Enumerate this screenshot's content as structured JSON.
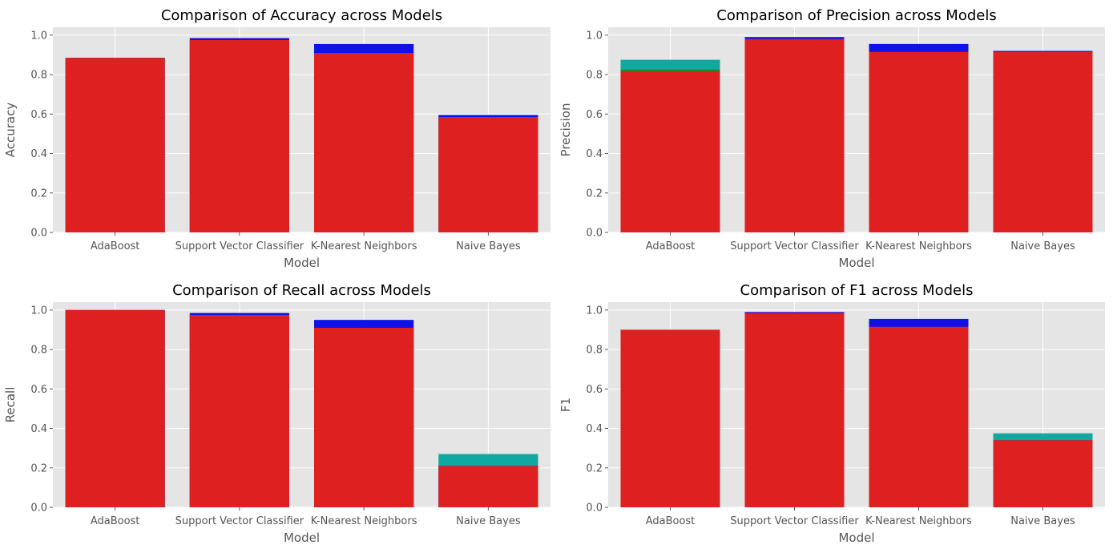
{
  "colors": {
    "plot_background": "#e5e5e5",
    "grid": "#ffffff",
    "text": "#555555",
    "title": "#000000"
  },
  "chart_data": [
    {
      "type": "bar",
      "title": "Comparison of Accuracy across Models",
      "xlabel": "Model",
      "ylabel": "Accuracy",
      "ylim": [
        0,
        1.04
      ],
      "yticks": [
        "0.0",
        "0.2",
        "0.4",
        "0.6",
        "0.8",
        "1.0"
      ],
      "grid": true,
      "categories": [
        "AdaBoost",
        "Support Vector Classifier",
        "K-Nearest Neighbors",
        "Naive Bayes"
      ],
      "series": [
        {
          "color": "#1010e8",
          "values": [
            0.885,
            0.985,
            0.955,
            0.595
          ]
        },
        {
          "color": "#10a8a0",
          "values": [
            0.885,
            0.975,
            0.91,
            0.585
          ]
        },
        {
          "color": "#de2020",
          "values": [
            0.885,
            0.975,
            0.91,
            0.585
          ]
        }
      ]
    },
    {
      "type": "bar",
      "title": "Comparison of Precision across Models",
      "xlabel": "Model",
      "ylabel": "Precision",
      "ylim": [
        0,
        1.04
      ],
      "yticks": [
        "0.0",
        "0.2",
        "0.4",
        "0.6",
        "0.8",
        "1.0"
      ],
      "grid": true,
      "categories": [
        "AdaBoost",
        "Support Vector Classifier",
        "K-Nearest Neighbors",
        "Naive Bayes"
      ],
      "series": [
        {
          "color": "#10a8a0",
          "values": [
            0.875,
            0.99,
            0.955,
            0.92
          ]
        },
        {
          "color": "#1010e8",
          "values": [
            0.82,
            0.99,
            0.955,
            0.92
          ]
        },
        {
          "color": "#1a8a1a",
          "values": [
            0.825,
            0.98,
            0.915,
            0.915
          ]
        },
        {
          "color": "#de2020",
          "values": [
            0.815,
            0.98,
            0.915,
            0.915
          ]
        }
      ]
    },
    {
      "type": "bar",
      "title": "Comparison of Recall across Models",
      "xlabel": "Model",
      "ylabel": "Recall",
      "ylim": [
        0,
        1.04
      ],
      "yticks": [
        "0.0",
        "0.2",
        "0.4",
        "0.6",
        "0.8",
        "1.0"
      ],
      "grid": true,
      "categories": [
        "AdaBoost",
        "Support Vector Classifier",
        "K-Nearest Neighbors",
        "Naive Bayes"
      ],
      "series": [
        {
          "color": "#10a8a0",
          "values": [
            1.0,
            0.975,
            0.91,
            0.27
          ]
        },
        {
          "color": "#1010e8",
          "values": [
            1.0,
            0.985,
            0.95,
            0.21
          ]
        },
        {
          "color": "#de2020",
          "values": [
            1.0,
            0.975,
            0.91,
            0.21
          ]
        }
      ]
    },
    {
      "type": "bar",
      "title": "Comparison of F1 across Models",
      "xlabel": "Model",
      "ylabel": "F1",
      "ylim": [
        0,
        1.04
      ],
      "yticks": [
        "0.0",
        "0.2",
        "0.4",
        "0.6",
        "0.8",
        "1.0"
      ],
      "grid": true,
      "categories": [
        "AdaBoost",
        "Support Vector Classifier",
        "K-Nearest Neighbors",
        "Naive Bayes"
      ],
      "series": [
        {
          "color": "#10a8a0",
          "values": [
            0.9,
            0.985,
            0.915,
            0.375
          ]
        },
        {
          "color": "#1010e8",
          "values": [
            0.9,
            0.99,
            0.955,
            0.34
          ]
        },
        {
          "color": "#de2020",
          "values": [
            0.9,
            0.985,
            0.915,
            0.34
          ]
        }
      ]
    }
  ]
}
